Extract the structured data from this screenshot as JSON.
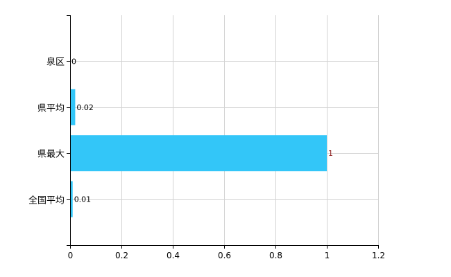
{
  "chart_data": {
    "type": "bar",
    "orientation": "horizontal",
    "categories": [
      "泉区",
      "県平均",
      "県最大",
      "全国平均"
    ],
    "values": [
      0,
      0.02,
      1,
      0.01
    ],
    "data_labels": [
      "0",
      "0.02",
      "1",
      "0.01"
    ],
    "xlim": [
      0,
      1.2
    ],
    "xticks": [
      "0",
      "0.2",
      "0.4",
      "0.6",
      "0.8",
      "1",
      "1.2"
    ],
    "grid": true,
    "colors": {
      "bar": "#33C6F8",
      "grid": "#D3D3D3",
      "label": "#000000",
      "max_label": "#8B1A1A"
    }
  }
}
